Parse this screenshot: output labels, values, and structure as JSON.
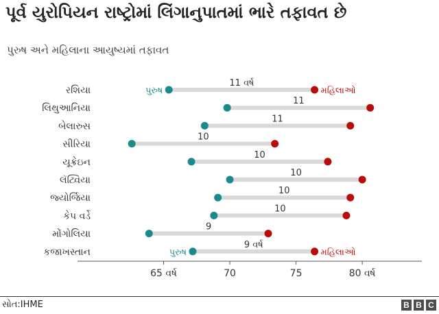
{
  "title": "પૂર્વ યુરોપિયન રાષ્ટ્રોમાં લિંગાનુપાતમાં ભારે તફાવત છે",
  "subtitle": "પુરુષ અને મહિલાના આયુષ્યમાં તફાવત",
  "source": "સોત:IHME",
  "logo": [
    "B",
    "B",
    "C"
  ],
  "colors": {
    "male": "#1b8a8a",
    "female": "#b80c09",
    "bar": "#d9d9d9",
    "text": "#222222"
  },
  "chart_data": {
    "type": "dumbbell",
    "xlim": [
      58.5,
      84.5
    ],
    "ticks": [
      65,
      70,
      75,
      80
    ],
    "tick_labels": [
      "65 વર્ષ",
      "70",
      "75",
      "80 વર્ષ"
    ],
    "legend": {
      "male": "પુરુષ",
      "female": "મહિલાઓ"
    },
    "rows": [
      {
        "country": "રશિયા",
        "male": 65.4,
        "female": 76.4,
        "gap_label": "11 વર્ષ"
      },
      {
        "country": "લિથુઆનિયા",
        "male": 69.8,
        "female": 80.6,
        "gap_label": "11"
      },
      {
        "country": "બેલારુસ",
        "male": 68.1,
        "female": 79.1,
        "gap_label": "11"
      },
      {
        "country": "સીરિયા",
        "male": 62.6,
        "female": 73.4,
        "gap_label": "10"
      },
      {
        "country": "યૂક્રેઇન",
        "male": 67.1,
        "female": 77.4,
        "gap_label": "10"
      },
      {
        "country": "લૅટ્વિયા",
        "male": 70.0,
        "female": 80.0,
        "gap_label": "10"
      },
      {
        "country": "જ્યોર્જિયા",
        "male": 69.1,
        "female": 79.1,
        "gap_label": "10"
      },
      {
        "country": "કેપ વર્ડે",
        "male": 68.8,
        "female": 78.8,
        "gap_label": "10"
      },
      {
        "country": "મોંગોલિયા",
        "male": 63.9,
        "female": 72.9,
        "gap_label": "9"
      },
      {
        "country": "કજાખસ્તાન",
        "male": 67.2,
        "female": 76.4,
        "gap_label": "9 વર્ષ"
      }
    ]
  }
}
